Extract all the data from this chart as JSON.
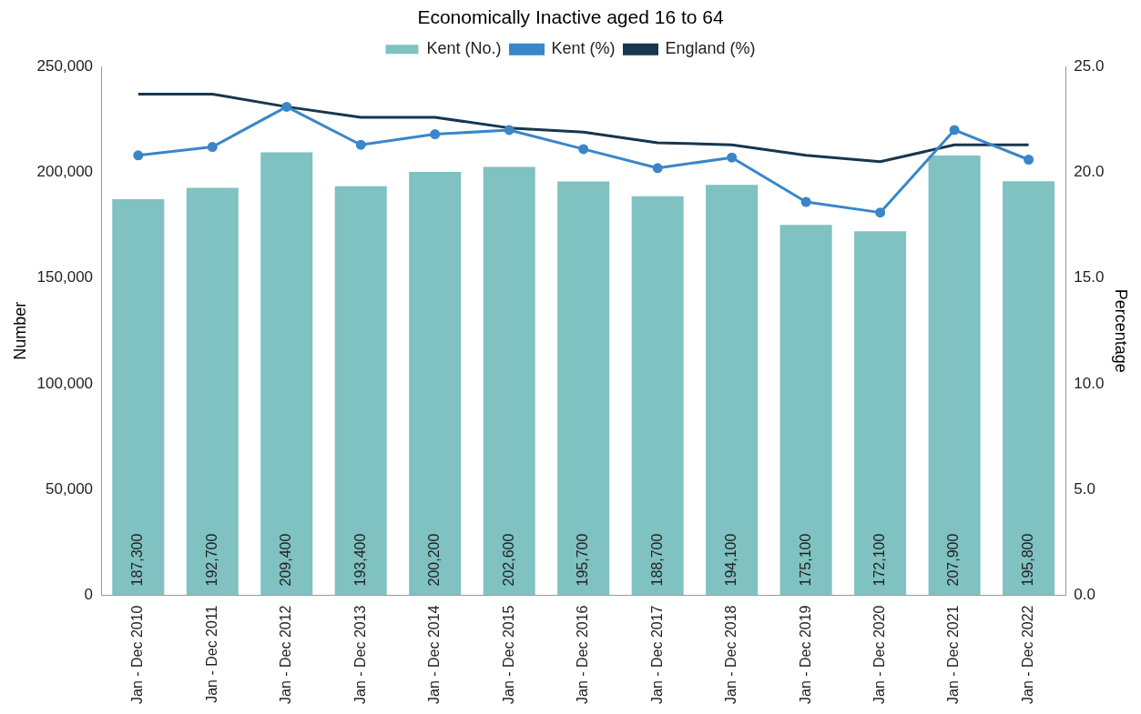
{
  "chart_data": {
    "type": "bar",
    "title": "Economically Inactive aged 16 to 64",
    "ylabel": "Number",
    "y2label": "Percentage",
    "categories": [
      "Jan - Dec 2010",
      "Jan - Dec 2011",
      "Jan - Dec 2012",
      "Jan - Dec 2013",
      "Jan - Dec 2014",
      "Jan - Dec 2015",
      "Jan - Dec 2016",
      "Jan - Dec 2017",
      "Jan - Dec 2018",
      "Jan - Dec 2019",
      "Jan - Dec 2020",
      "Jan - Dec 2021",
      "Jan - Dec 2022"
    ],
    "series": [
      {
        "name": "Kent (No.)",
        "color": "#80c1c1",
        "values": [
          187300,
          192700,
          209400,
          193400,
          200200,
          202600,
          195700,
          188700,
          194100,
          175100,
          172100,
          207900,
          195800
        ],
        "value_labels": [
          "187,300",
          "192,700",
          "209,400",
          "193,400",
          "200,200",
          "202,600",
          "195,700",
          "188,700",
          "194,100",
          "175,100",
          "172,100",
          "207,900",
          "195,800"
        ]
      },
      {
        "name": "Kent (%)",
        "type": "line",
        "axis": "y2",
        "marker": "circle",
        "color": "#3a86c8",
        "values": [
          20.8,
          21.2,
          23.1,
          21.3,
          21.8,
          22.0,
          21.1,
          20.2,
          20.7,
          18.6,
          18.1,
          22.0,
          20.6
        ]
      },
      {
        "name": "England (%)",
        "type": "line",
        "axis": "y2",
        "marker": "none",
        "color": "#17364f",
        "values": [
          23.7,
          23.7,
          23.1,
          22.6,
          22.6,
          22.1,
          21.9,
          21.4,
          21.3,
          20.8,
          20.5,
          21.3,
          21.3
        ]
      }
    ],
    "ylim": [
      0,
      250000
    ],
    "yticks": [
      {
        "value": 0,
        "label": "0"
      },
      {
        "value": 50000,
        "label": "50,000"
      },
      {
        "value": 100000,
        "label": "100,000"
      },
      {
        "value": 150000,
        "label": "150,000"
      },
      {
        "value": 200000,
        "label": "200,000"
      },
      {
        "value": 250000,
        "label": "250,000"
      }
    ],
    "y2lim": [
      0,
      25
    ],
    "y2ticks": [
      {
        "value": 0,
        "label": "0.0"
      },
      {
        "value": 5,
        "label": "5.0"
      },
      {
        "value": 10,
        "label": "10.0"
      },
      {
        "value": 15,
        "label": "15.0"
      },
      {
        "value": 20,
        "label": "20.0"
      },
      {
        "value": 25,
        "label": "25.0"
      }
    ],
    "legend": "top",
    "grid": false
  }
}
